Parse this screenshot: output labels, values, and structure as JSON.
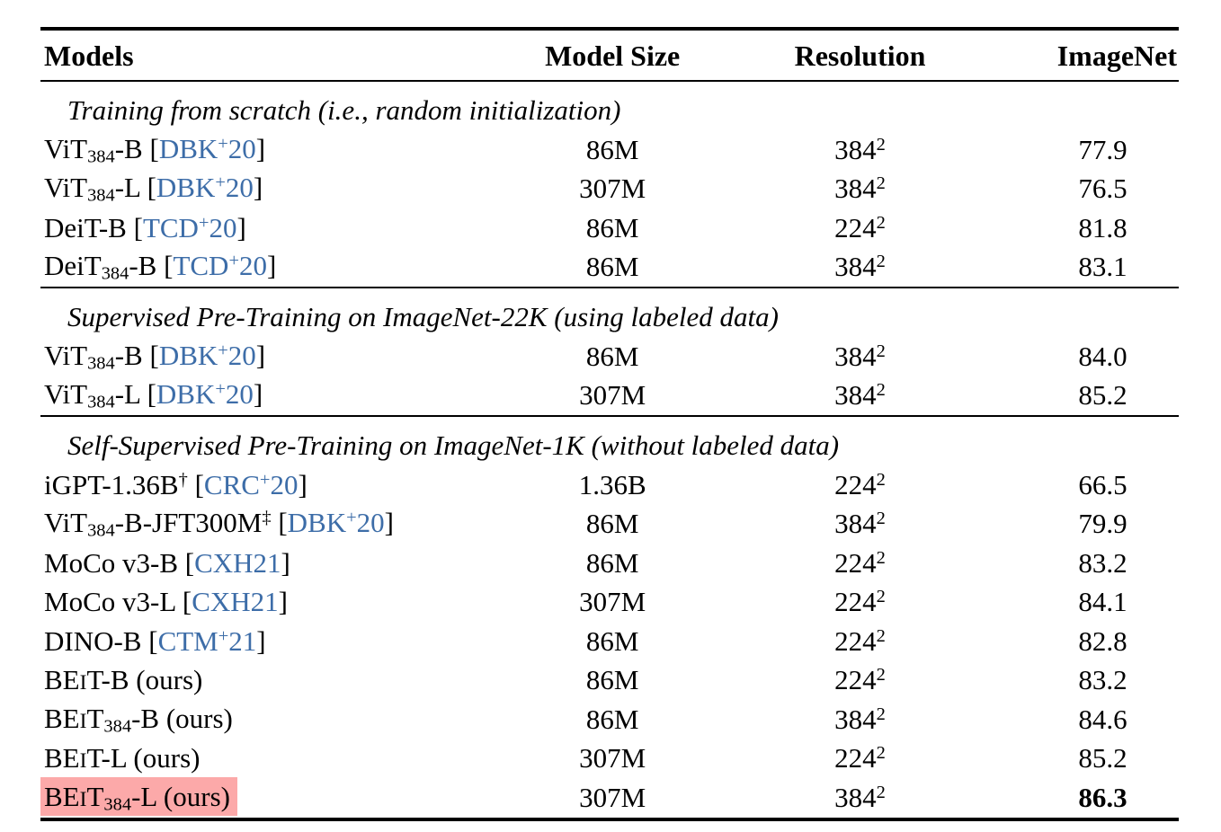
{
  "colors": {
    "citation_blue": "#3D6DA8",
    "highlight_pink": "#FCA9A9",
    "rule_black": "#000000",
    "background": "#ffffff"
  },
  "table": {
    "columns": [
      "Models",
      "Model Size",
      "Resolution",
      "ImageNet"
    ],
    "sections": [
      {
        "title": "Training from scratch (i.e., random initialization)",
        "rows": [
          {
            "model": [
              {
                "t": "t",
                "v": "ViT"
              },
              {
                "t": "sub",
                "v": "384"
              },
              {
                "t": "t",
                "v": "-B ["
              },
              {
                "t": "cite",
                "v": "DBK"
              },
              {
                "t": "csup",
                "v": "+"
              },
              {
                "t": "cite",
                "v": "20"
              },
              {
                "t": "t",
                "v": "]"
              }
            ],
            "size": "86M",
            "res": "384",
            "res_sup": "2",
            "imagenet": "77.9",
            "highlight": false,
            "imagenet_bold": false
          },
          {
            "model": [
              {
                "t": "t",
                "v": "ViT"
              },
              {
                "t": "sub",
                "v": "384"
              },
              {
                "t": "t",
                "v": "-L ["
              },
              {
                "t": "cite",
                "v": "DBK"
              },
              {
                "t": "csup",
                "v": "+"
              },
              {
                "t": "cite",
                "v": "20"
              },
              {
                "t": "t",
                "v": "]"
              }
            ],
            "size": "307M",
            "res": "384",
            "res_sup": "2",
            "imagenet": "76.5",
            "highlight": false,
            "imagenet_bold": false
          },
          {
            "model": [
              {
                "t": "t",
                "v": "DeiT-B ["
              },
              {
                "t": "cite",
                "v": "TCD"
              },
              {
                "t": "csup",
                "v": "+"
              },
              {
                "t": "cite",
                "v": "20"
              },
              {
                "t": "t",
                "v": "]"
              }
            ],
            "size": "86M",
            "res": "224",
            "res_sup": "2",
            "imagenet": "81.8",
            "highlight": false,
            "imagenet_bold": false
          },
          {
            "model": [
              {
                "t": "t",
                "v": "DeiT"
              },
              {
                "t": "sub",
                "v": "384"
              },
              {
                "t": "t",
                "v": "-B ["
              },
              {
                "t": "cite",
                "v": "TCD"
              },
              {
                "t": "csup",
                "v": "+"
              },
              {
                "t": "cite",
                "v": "20"
              },
              {
                "t": "t",
                "v": "]"
              }
            ],
            "size": "86M",
            "res": "384",
            "res_sup": "2",
            "imagenet": "83.1",
            "highlight": false,
            "imagenet_bold": false
          }
        ]
      },
      {
        "title": "Supervised Pre-Training on ImageNet-22K (using labeled data)",
        "rows": [
          {
            "model": [
              {
                "t": "t",
                "v": "ViT"
              },
              {
                "t": "sub",
                "v": "384"
              },
              {
                "t": "t",
                "v": "-B ["
              },
              {
                "t": "cite",
                "v": "DBK"
              },
              {
                "t": "csup",
                "v": "+"
              },
              {
                "t": "cite",
                "v": "20"
              },
              {
                "t": "t",
                "v": "]"
              }
            ],
            "size": "86M",
            "res": "384",
            "res_sup": "2",
            "imagenet": "84.0",
            "highlight": false,
            "imagenet_bold": false
          },
          {
            "model": [
              {
                "t": "t",
                "v": "ViT"
              },
              {
                "t": "sub",
                "v": "384"
              },
              {
                "t": "t",
                "v": "-L ["
              },
              {
                "t": "cite",
                "v": "DBK"
              },
              {
                "t": "csup",
                "v": "+"
              },
              {
                "t": "cite",
                "v": "20"
              },
              {
                "t": "t",
                "v": "]"
              }
            ],
            "size": "307M",
            "res": "384",
            "res_sup": "2",
            "imagenet": "85.2",
            "highlight": false,
            "imagenet_bold": false
          }
        ]
      },
      {
        "title": "Self-Supervised Pre-Training on ImageNet-1K (without labeled data)",
        "rows": [
          {
            "model": [
              {
                "t": "t",
                "v": "iGPT-1.36B"
              },
              {
                "t": "sup",
                "v": "†"
              },
              {
                "t": "t",
                "v": " ["
              },
              {
                "t": "cite",
                "v": "CRC"
              },
              {
                "t": "csup",
                "v": "+"
              },
              {
                "t": "cite",
                "v": "20"
              },
              {
                "t": "t",
                "v": "]"
              }
            ],
            "size": "1.36B",
            "res": "224",
            "res_sup": "2",
            "imagenet": "66.5",
            "highlight": false,
            "imagenet_bold": false
          },
          {
            "model": [
              {
                "t": "t",
                "v": "ViT"
              },
              {
                "t": "sub",
                "v": "384"
              },
              {
                "t": "t",
                "v": "-B-JFT300M"
              },
              {
                "t": "sup",
                "v": "‡"
              },
              {
                "t": "t",
                "v": " ["
              },
              {
                "t": "cite",
                "v": "DBK"
              },
              {
                "t": "csup",
                "v": "+"
              },
              {
                "t": "cite",
                "v": "20"
              },
              {
                "t": "t",
                "v": "]"
              }
            ],
            "size": "86M",
            "res": "384",
            "res_sup": "2",
            "imagenet": "79.9",
            "highlight": false,
            "imagenet_bold": false
          },
          {
            "model": [
              {
                "t": "t",
                "v": "MoCo v3-B ["
              },
              {
                "t": "cite",
                "v": "CXH21"
              },
              {
                "t": "t",
                "v": "]"
              }
            ],
            "size": "86M",
            "res": "224",
            "res_sup": "2",
            "imagenet": "83.2",
            "highlight": false,
            "imagenet_bold": false
          },
          {
            "model": [
              {
                "t": "t",
                "v": "MoCo v3-L ["
              },
              {
                "t": "cite",
                "v": "CXH21"
              },
              {
                "t": "t",
                "v": "]"
              }
            ],
            "size": "307M",
            "res": "224",
            "res_sup": "2",
            "imagenet": "84.1",
            "highlight": false,
            "imagenet_bold": false
          },
          {
            "model": [
              {
                "t": "t",
                "v": "DINO-B ["
              },
              {
                "t": "cite",
                "v": "CTM"
              },
              {
                "t": "csup",
                "v": "+"
              },
              {
                "t": "cite",
                "v": "21"
              },
              {
                "t": "t",
                "v": "]"
              }
            ],
            "size": "86M",
            "res": "224",
            "res_sup": "2",
            "imagenet": "82.8",
            "highlight": false,
            "imagenet_bold": false
          },
          {
            "model": [
              {
                "t": "t",
                "v": "BE"
              },
              {
                "t": "sc",
                "v": "I"
              },
              {
                "t": "t",
                "v": "T-B (ours)"
              }
            ],
            "size": "86M",
            "res": "224",
            "res_sup": "2",
            "imagenet": "83.2",
            "highlight": false,
            "imagenet_bold": false
          },
          {
            "model": [
              {
                "t": "t",
                "v": "BE"
              },
              {
                "t": "sc",
                "v": "I"
              },
              {
                "t": "t",
                "v": "T"
              },
              {
                "t": "sub",
                "v": "384"
              },
              {
                "t": "t",
                "v": "-B (ours)"
              }
            ],
            "size": "86M",
            "res": "384",
            "res_sup": "2",
            "imagenet": "84.6",
            "highlight": false,
            "imagenet_bold": false
          },
          {
            "model": [
              {
                "t": "t",
                "v": "BE"
              },
              {
                "t": "sc",
                "v": "I"
              },
              {
                "t": "t",
                "v": "T-L (ours)"
              }
            ],
            "size": "307M",
            "res": "224",
            "res_sup": "2",
            "imagenet": "85.2",
            "highlight": false,
            "imagenet_bold": false
          },
          {
            "model": [
              {
                "t": "t",
                "v": "BE"
              },
              {
                "t": "sc",
                "v": "I"
              },
              {
                "t": "t",
                "v": "T"
              },
              {
                "t": "sub",
                "v": "384"
              },
              {
                "t": "t",
                "v": "-L (ours)"
              }
            ],
            "size": "307M",
            "res": "384",
            "res_sup": "2",
            "imagenet": "86.3",
            "highlight": true,
            "imagenet_bold": true
          }
        ]
      }
    ]
  }
}
